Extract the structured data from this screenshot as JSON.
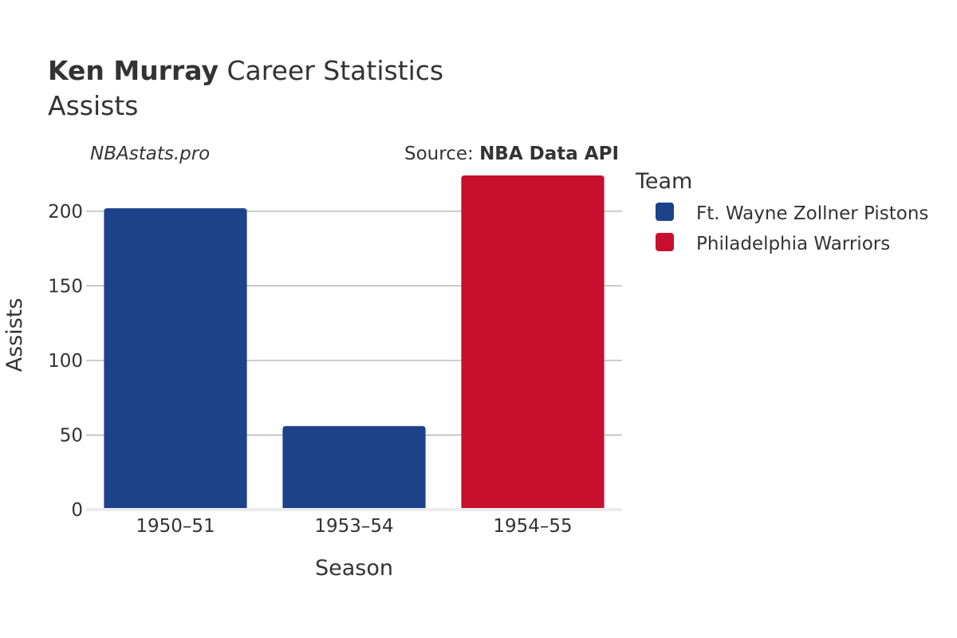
{
  "title": {
    "player": "Ken Murray",
    "rest": " Career Statistics",
    "metric": "Assists"
  },
  "watermark": "NBAstats.pro",
  "source": {
    "prefix": "Source: ",
    "name": "NBA Data API"
  },
  "legend": {
    "title": "Team",
    "items": [
      {
        "label": "Ft. Wayne Zollner Pistons",
        "color": "#1d428a"
      },
      {
        "label": "Philadelphia Warriors",
        "color": "#c8102e"
      }
    ]
  },
  "chart_data": {
    "type": "bar",
    "categories": [
      "1950–51",
      "1953–54",
      "1954–55"
    ],
    "values": [
      202,
      56,
      224
    ],
    "bar_team": [
      "Ft. Wayne Zollner Pistons",
      "Ft. Wayne Zollner Pistons",
      "Philadelphia Warriors"
    ],
    "xlabel": "Season",
    "ylabel": "Assists",
    "ylim": [
      0,
      224
    ],
    "yticks": [
      0,
      50,
      100,
      150,
      200
    ],
    "grid": true,
    "legend_position": "right"
  }
}
